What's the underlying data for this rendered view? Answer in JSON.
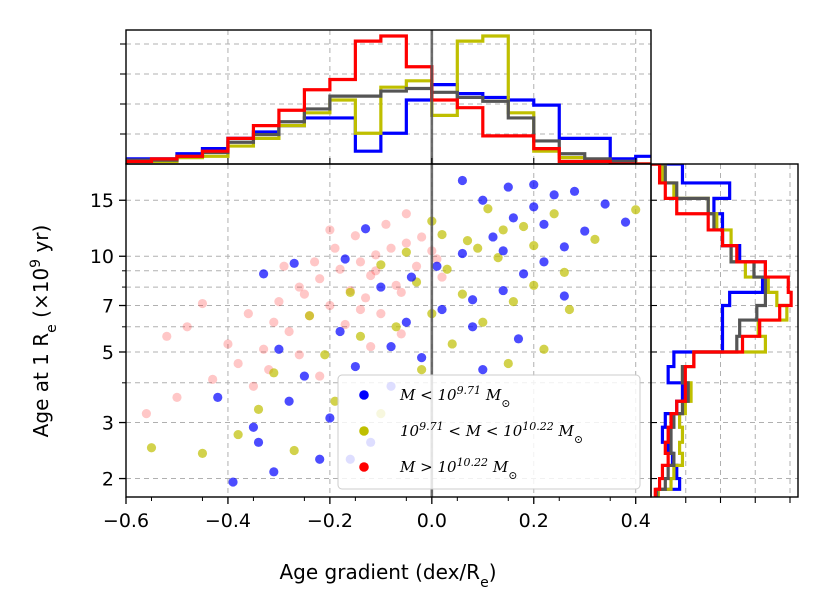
{
  "chart_data": {
    "type": "scatter",
    "xlabel": "Age gradient (dex/R",
    "xlabel_sub": "e",
    "xlabel_tail": ")",
    "ylabel": "Age at 1 R",
    "ylabel_sub": "e",
    "ylabel_tail": " (×10",
    "ylabel_sup": "9",
    "ylabel_end": " yr)",
    "xlim": [
      -0.6,
      0.43
    ],
    "ylim": [
      1.75,
      19.5
    ],
    "y_scale": "log",
    "grid": true,
    "xticks": [
      -0.6,
      -0.4,
      -0.2,
      0.0,
      0.2,
      0.4
    ],
    "xtick_labels": [
      "−0.6",
      "−0.4",
      "−0.2",
      "0.0",
      "0.2",
      "0.4"
    ],
    "yticks": [
      2,
      3,
      5,
      7,
      10,
      15
    ],
    "ytick_labels": [
      "2",
      "3",
      "5",
      "7",
      "10",
      "15"
    ],
    "legend_position": "lower-center",
    "series": [
      {
        "key": "low",
        "legend": {
          "pre": "M < 10",
          "sup": "9.71",
          "post": " M",
          "sub": "⊙"
        },
        "color": "#0000ff",
        "points": [
          [
            -0.39,
            1.95
          ],
          [
            -0.31,
            2.1
          ],
          [
            -0.22,
            2.3
          ],
          [
            -0.12,
            2.6
          ],
          [
            -0.2,
            3.1
          ],
          [
            -0.28,
            3.5
          ],
          [
            -0.35,
            2.9
          ],
          [
            -0.25,
            4.2
          ],
          [
            -0.15,
            4.5
          ],
          [
            -0.08,
            5.2
          ],
          [
            -0.18,
            5.8
          ],
          [
            -0.3,
            5.1
          ],
          [
            -0.42,
            3.6
          ],
          [
            -0.05,
            6.2
          ],
          [
            0.02,
            6.8
          ],
          [
            0.08,
            7.3
          ],
          [
            0.14,
            7.8
          ],
          [
            0.18,
            8.8
          ],
          [
            0.22,
            9.6
          ],
          [
            0.26,
            10.7
          ],
          [
            0.3,
            12.0
          ],
          [
            0.12,
            11.5
          ],
          [
            0.06,
            10.2
          ],
          [
            0.01,
            9.3
          ],
          [
            -0.04,
            8.6
          ],
          [
            -0.1,
            8.0
          ],
          [
            0.16,
            13.2
          ],
          [
            0.2,
            14.3
          ],
          [
            0.24,
            15.6
          ],
          [
            0.1,
            15.0
          ],
          [
            0.15,
            16.5
          ],
          [
            0.06,
            17.3
          ],
          [
            0.38,
            12.8
          ],
          [
            0.34,
            14.6
          ],
          [
            0.28,
            16.0
          ],
          [
            0.2,
            16.8
          ],
          [
            -0.27,
            9.5
          ],
          [
            -0.17,
            9.8
          ],
          [
            -0.33,
            8.8
          ],
          [
            -0.13,
            12.2
          ],
          [
            0.08,
            6.0
          ],
          [
            0.1,
            4.4
          ],
          [
            0.17,
            5.5
          ],
          [
            0.26,
            7.5
          ],
          [
            0.14,
            10.4
          ],
          [
            0.22,
            12.6
          ],
          [
            -0.08,
            3.9
          ],
          [
            -0.02,
            4.8
          ],
          [
            -0.16,
            2.3
          ],
          [
            -0.34,
            2.6
          ]
        ]
      },
      {
        "key": "mid",
        "legend": {
          "pre": "10",
          "sup": "9.71",
          "mid": " < M < 10",
          "sup2": "10.22",
          "post": " M",
          "sub": "⊙"
        },
        "color": "#bfbf00",
        "points": [
          [
            -0.55,
            2.5
          ],
          [
            -0.45,
            2.4
          ],
          [
            -0.38,
            2.75
          ],
          [
            -0.27,
            2.45
          ],
          [
            -0.19,
            3.5
          ],
          [
            -0.1,
            3.2
          ],
          [
            -0.02,
            4.4
          ],
          [
            0.04,
            5.3
          ],
          [
            0.1,
            6.2
          ],
          [
            0.16,
            7.2
          ],
          [
            0.2,
            8.1
          ],
          [
            0.26,
            8.9
          ],
          [
            0.13,
            9.9
          ],
          [
            0.07,
            11.2
          ],
          [
            0.02,
            11.7
          ],
          [
            -0.05,
            10.3
          ],
          [
            -0.1,
            9.4
          ],
          [
            0.18,
            12.4
          ],
          [
            0.24,
            13.6
          ],
          [
            0.11,
            14.1
          ],
          [
            0.06,
            7.6
          ],
          [
            0.0,
            6.6
          ],
          [
            -0.07,
            6.0
          ],
          [
            -0.14,
            5.6
          ],
          [
            -0.21,
            4.9
          ],
          [
            -0.31,
            4.3
          ],
          [
            0.32,
            11.3
          ],
          [
            0.4,
            14.0
          ],
          [
            0.09,
            10.6
          ],
          [
            0.14,
            12.1
          ],
          [
            -0.03,
            8.3
          ],
          [
            0.03,
            9.1
          ],
          [
            0.2,
            10.8
          ],
          [
            0.27,
            6.8
          ],
          [
            0.22,
            5.1
          ],
          [
            0.15,
            4.6
          ],
          [
            -0.24,
            6.5
          ],
          [
            -0.34,
            3.3
          ],
          [
            -0.16,
            7.7
          ],
          [
            0.0,
            12.9
          ]
        ]
      },
      {
        "key": "high",
        "legend": {
          "pre": "M > 10",
          "sup": "10.22",
          "post": " M",
          "sub": "⊙"
        },
        "color": "#ff0000",
        "points": [
          [
            -0.48,
            6.0
          ],
          [
            -0.4,
            5.3
          ],
          [
            -0.36,
            6.6
          ],
          [
            -0.3,
            7.2
          ],
          [
            -0.26,
            8.0
          ],
          [
            -0.22,
            8.5
          ],
          [
            -0.18,
            9.1
          ],
          [
            -0.14,
            9.6
          ],
          [
            -0.11,
            10.1
          ],
          [
            -0.08,
            10.6
          ],
          [
            -0.05,
            11.0
          ],
          [
            -0.02,
            11.5
          ],
          [
            0.01,
            9.8
          ],
          [
            -0.12,
            8.7
          ],
          [
            -0.16,
            7.8
          ],
          [
            -0.2,
            7.0
          ],
          [
            -0.24,
            6.5
          ],
          [
            -0.28,
            5.8
          ],
          [
            -0.33,
            5.1
          ],
          [
            -0.38,
            4.6
          ],
          [
            -0.43,
            4.1
          ],
          [
            -0.5,
            3.6
          ],
          [
            -0.56,
            3.2
          ],
          [
            -0.15,
            11.6
          ],
          [
            -0.09,
            12.6
          ],
          [
            -0.05,
            13.6
          ],
          [
            -0.19,
            10.6
          ],
          [
            -0.23,
            9.6
          ],
          [
            -0.13,
            7.4
          ],
          [
            -0.07,
            8.1
          ],
          [
            -0.03,
            9.3
          ],
          [
            0.0,
            10.4
          ],
          [
            -0.1,
            6.6
          ],
          [
            -0.17,
            6.1
          ],
          [
            -0.26,
            4.9
          ],
          [
            -0.32,
            4.4
          ],
          [
            -0.35,
            3.9
          ],
          [
            -0.22,
            4.2
          ],
          [
            -0.12,
            5.2
          ],
          [
            -0.06,
            5.7
          ],
          [
            -0.45,
            7.1
          ],
          [
            -0.52,
            5.6
          ],
          [
            -0.29,
            9.3
          ],
          [
            -0.2,
            12.1
          ],
          [
            -0.11,
            9.0
          ],
          [
            -0.06,
            7.7
          ],
          [
            0.02,
            8.6
          ],
          [
            -0.14,
            6.8
          ],
          [
            -0.25,
            7.6
          ],
          [
            -0.31,
            6.2
          ]
        ]
      }
    ],
    "top_histogram": {
      "bin_edges": [
        -0.6,
        -0.55,
        -0.5,
        -0.45,
        -0.4,
        -0.35,
        -0.3,
        -0.25,
        -0.2,
        -0.15,
        -0.1,
        -0.05,
        0.0,
        0.05,
        0.1,
        0.15,
        0.2,
        0.25,
        0.3,
        0.35,
        0.4,
        0.45
      ],
      "series": [
        {
          "color": "#0000ff",
          "counts": [
            0.04,
            0.04,
            0.08,
            0.12,
            0.2,
            0.25,
            0.3,
            0.36,
            0.36,
            0.1,
            0.24,
            0.5,
            0.62,
            0.55,
            0.52,
            0.5,
            0.46,
            0.2,
            0.2,
            0.04,
            0.06
          ]
        },
        {
          "color": "#bfbf00",
          "counts": [
            0.02,
            0.02,
            0.05,
            0.06,
            0.14,
            0.2,
            0.3,
            0.4,
            0.5,
            0.24,
            0.6,
            0.65,
            0.38,
            0.96,
            1.0,
            0.4,
            0.1,
            0.05,
            0.02,
            0.02,
            0.0
          ]
        },
        {
          "color": "#555555",
          "counts": [
            0.03,
            0.03,
            0.06,
            0.09,
            0.17,
            0.23,
            0.33,
            0.43,
            0.53,
            0.53,
            0.57,
            0.59,
            0.56,
            0.52,
            0.49,
            0.36,
            0.18,
            0.08,
            0.04,
            0.02,
            0.0
          ]
        },
        {
          "color": "#ff0000",
          "counts": [
            0.02,
            0.04,
            0.06,
            0.1,
            0.2,
            0.3,
            0.42,
            0.58,
            0.66,
            0.96,
            1.0,
            0.76,
            0.5,
            0.44,
            0.22,
            0.22,
            0.12,
            0.02,
            0.02,
            0.0,
            0.0
          ]
        }
      ]
    },
    "right_histogram": {
      "bin_edges": [
        1.7,
        1.85,
        2.0,
        2.2,
        2.4,
        2.6,
        2.9,
        3.2,
        3.5,
        4.0,
        4.5,
        5.0,
        5.6,
        6.3,
        7.0,
        7.7,
        8.6,
        9.6,
        10.8,
        12.1,
        13.6,
        15.2,
        17.0,
        19.5
      ],
      "series": [
        {
          "color": "#0000ff",
          "counts": [
            0.05,
            0.2,
            0.18,
            0.15,
            0.12,
            0.08,
            0.1,
            0.18,
            0.22,
            0.12,
            0.16,
            0.5,
            0.5,
            0.5,
            0.55,
            0.78,
            0.8,
            0.62,
            0.5,
            0.5,
            0.44,
            0.55,
            0.22
          ]
        },
        {
          "color": "#bfbf00",
          "counts": [
            0.05,
            0.14,
            0.16,
            0.22,
            0.2,
            0.22,
            0.2,
            0.24,
            0.28,
            0.22,
            0.3,
            0.8,
            0.75,
            0.95,
            0.88,
            0.82,
            0.66,
            0.56,
            0.56,
            0.46,
            0.4,
            0.16,
            0.08
          ]
        },
        {
          "color": "#555555",
          "counts": [
            0.04,
            0.1,
            0.12,
            0.16,
            0.14,
            0.14,
            0.16,
            0.22,
            0.26,
            0.22,
            0.3,
            0.6,
            0.62,
            0.74,
            0.8,
            0.8,
            0.72,
            0.56,
            0.5,
            0.44,
            0.4,
            0.18,
            0.1
          ]
        },
        {
          "color": "#ff0000",
          "counts": [
            0.03,
            0.06,
            0.08,
            0.12,
            0.1,
            0.12,
            0.14,
            0.18,
            0.24,
            0.24,
            0.3,
            0.64,
            0.76,
            0.9,
            0.98,
            0.96,
            0.8,
            0.6,
            0.5,
            0.4,
            0.18,
            0.1,
            0.06
          ]
        }
      ]
    },
    "vertical_line_x": 0.0
  }
}
